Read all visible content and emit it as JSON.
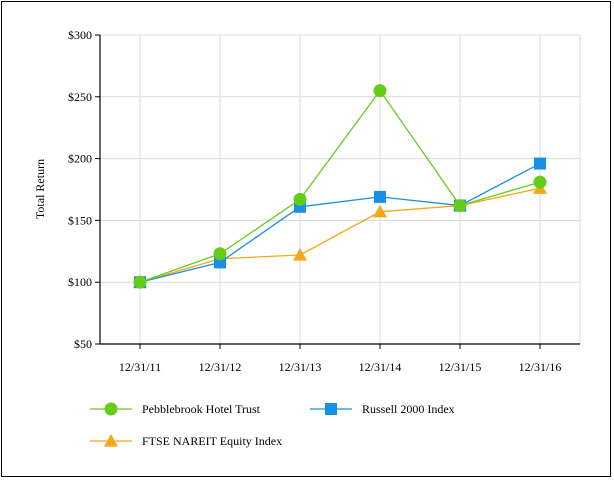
{
  "chart_data": {
    "type": "line",
    "categories": [
      "12/31/11",
      "12/31/12",
      "12/31/13",
      "12/31/14",
      "12/31/15",
      "12/31/16"
    ],
    "ylabel": "Total Return",
    "y_ticks": [
      "$300",
      "$250",
      "$200",
      "$150",
      "$100",
      "$50"
    ],
    "ylim": [
      50,
      300
    ],
    "grid": true,
    "legend_position": "bottom",
    "series": [
      {
        "name": "Pebblebrook Hotel Trust",
        "values": [
          100,
          123,
          167,
          255,
          162,
          181
        ],
        "color": "#66cc1a",
        "marker": "circle"
      },
      {
        "name": "Russell 2000 Index",
        "values": [
          100,
          116,
          161,
          169,
          162,
          196
        ],
        "color": "#1a8fe6",
        "marker": "square"
      },
      {
        "name": "FTSE NAREIT Equity Index",
        "values": [
          100,
          119,
          122,
          157,
          162,
          176
        ],
        "color": "#f2a81a",
        "marker": "triangle"
      }
    ]
  }
}
